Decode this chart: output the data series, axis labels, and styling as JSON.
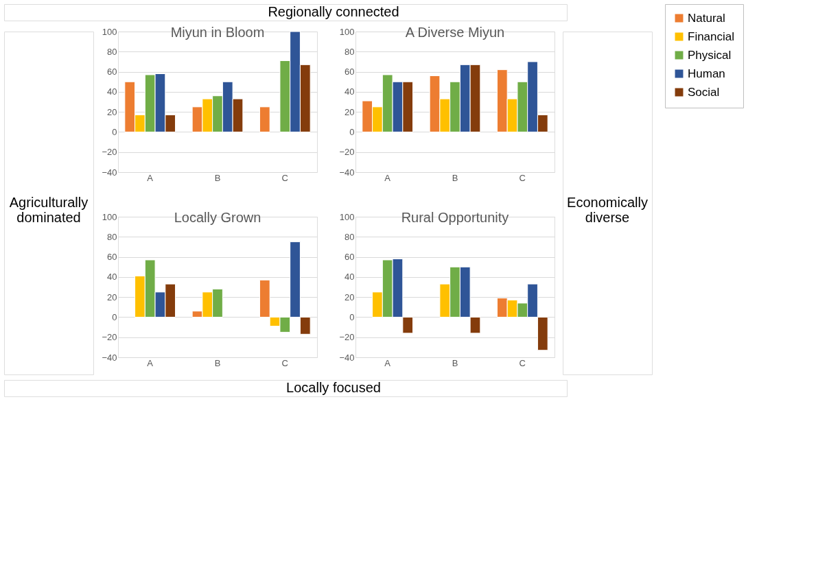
{
  "chart_data": [
    {
      "type": "bar",
      "title": "Miyun in Bloom",
      "categories": [
        "A",
        "B",
        "C"
      ],
      "ylim": [
        -40,
        100
      ],
      "yticks": [
        -40,
        -20,
        0,
        20,
        40,
        60,
        80,
        100
      ],
      "grid": "y",
      "legend": "right",
      "series": [
        {
          "name": "Natural",
          "color": "#ed7d31",
          "values": [
            50,
            25,
            25
          ]
        },
        {
          "name": "Financial",
          "color": "#ffc000",
          "values": [
            17,
            33,
            null
          ]
        },
        {
          "name": "Physical",
          "color": "#70ad47",
          "values": [
            57,
            36,
            71
          ]
        },
        {
          "name": "Human",
          "color": "#2f5597",
          "values": [
            58,
            50,
            100
          ]
        },
        {
          "name": "Social",
          "color": "#843c0c",
          "values": [
            17,
            33,
            67
          ]
        }
      ]
    },
    {
      "type": "bar",
      "title": "A Diverse Miyun",
      "categories": [
        "A",
        "B",
        "C"
      ],
      "ylim": [
        -40,
        100
      ],
      "yticks": [
        -40,
        -20,
        0,
        20,
        40,
        60,
        80,
        100
      ],
      "grid": "y",
      "legend": false,
      "series": [
        {
          "name": "Natural",
          "color": "#ed7d31",
          "values": [
            31,
            56,
            62
          ]
        },
        {
          "name": "Financial",
          "color": "#ffc000",
          "values": [
            25,
            33,
            33
          ]
        },
        {
          "name": "Physical",
          "color": "#70ad47",
          "values": [
            57,
            50,
            50
          ]
        },
        {
          "name": "Human",
          "color": "#2f5597",
          "values": [
            50,
            67,
            70
          ]
        },
        {
          "name": "Social",
          "color": "#843c0c",
          "values": [
            50,
            67,
            17
          ]
        }
      ]
    },
    {
      "type": "bar",
      "title": "Locally Grown",
      "categories": [
        "A",
        "B",
        "C"
      ],
      "ylim": [
        -40,
        100
      ],
      "yticks": [
        -40,
        -20,
        0,
        20,
        40,
        60,
        80,
        100
      ],
      "grid": "y",
      "legend": false,
      "series": [
        {
          "name": "Natural",
          "color": "#ed7d31",
          "values": [
            null,
            6,
            37
          ]
        },
        {
          "name": "Financial",
          "color": "#ffc000",
          "values": [
            41,
            25,
            -9
          ]
        },
        {
          "name": "Physical",
          "color": "#70ad47",
          "values": [
            57,
            28,
            -15
          ]
        },
        {
          "name": "Human",
          "color": "#2f5597",
          "values": [
            25,
            null,
            75
          ]
        },
        {
          "name": "Social",
          "color": "#843c0c",
          "values": [
            33,
            null,
            -17
          ]
        }
      ]
    },
    {
      "type": "bar",
      "title": "Rural Opportunity",
      "categories": [
        "A",
        "B",
        "C"
      ],
      "ylim": [
        -40,
        100
      ],
      "yticks": [
        -40,
        -20,
        0,
        20,
        40,
        60,
        80,
        100
      ],
      "grid": "y",
      "legend": false,
      "series": [
        {
          "name": "Natural",
          "color": "#ed7d31",
          "values": [
            null,
            null,
            19
          ]
        },
        {
          "name": "Financial",
          "color": "#ffc000",
          "values": [
            25,
            33,
            17
          ]
        },
        {
          "name": "Physical",
          "color": "#70ad47",
          "values": [
            57,
            50,
            14
          ]
        },
        {
          "name": "Human",
          "color": "#2f5597",
          "values": [
            58,
            50,
            33
          ]
        },
        {
          "name": "Social",
          "color": "#843c0c",
          "values": [
            -16,
            -16,
            -33
          ]
        }
      ]
    },
    {
      "type": "other",
      "annotations": [
        "Regionally connected",
        "Agriculturally dominated",
        "Economically diverse",
        "Locally focused"
      ]
    }
  ]
}
